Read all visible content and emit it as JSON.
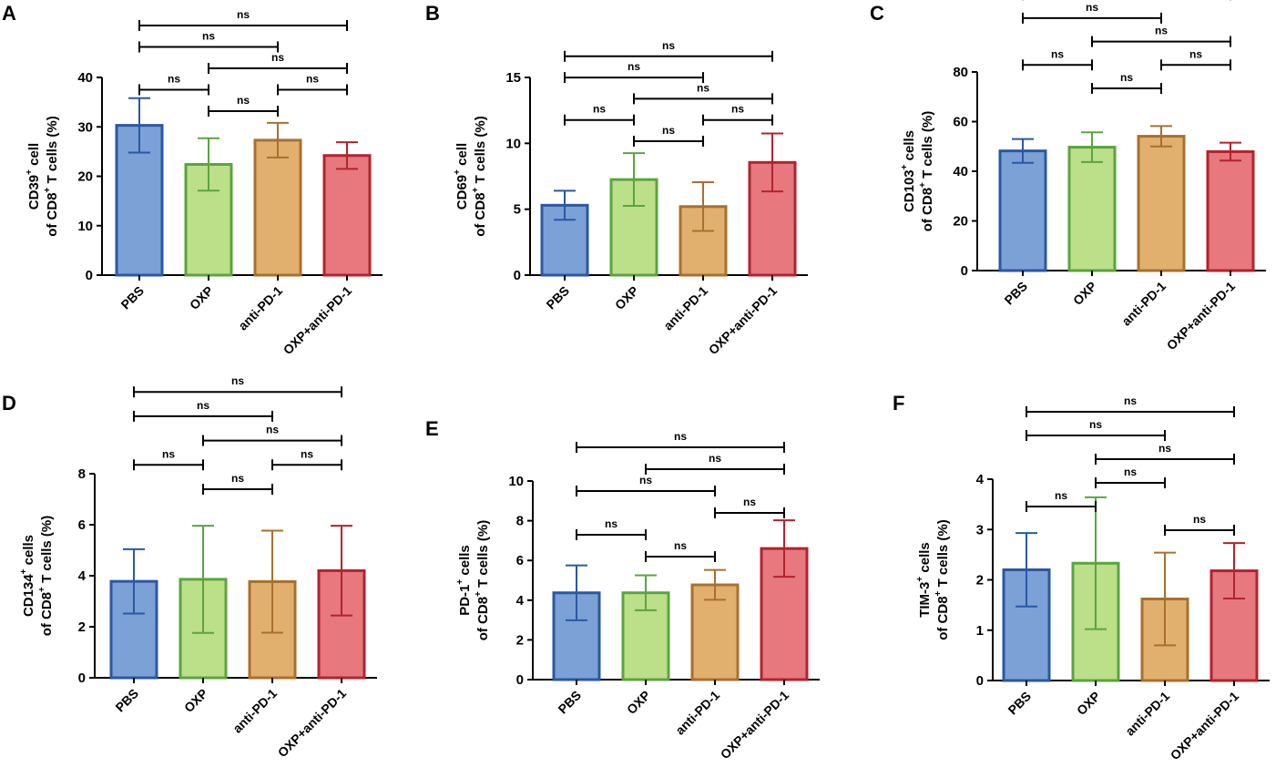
{
  "chart_data": [
    {
      "panel": "A",
      "type": "bar",
      "ylabel_line1": "CD39",
      "ylabel_sup1": "+",
      "ylabel_line1_rest": " cell",
      "ylabel_line2_pre": "of CD8",
      "ylabel_sup2": "+",
      "ylabel_line2_post": " T cells (%)",
      "categories": [
        "PBS",
        "OXP",
        "anti-PD-1",
        "OXP+anti-PD-1"
      ],
      "values": [
        30.3,
        22.4,
        27.3,
        24.2
      ],
      "errors": [
        5.5,
        5.3,
        3.5,
        2.7
      ],
      "ylim": [
        0,
        40
      ],
      "yticks": [
        0,
        10,
        20,
        30,
        40
      ],
      "brackets": [
        {
          "from": 0,
          "to": 1,
          "level": 1,
          "label": "ns"
        },
        {
          "from": 1,
          "to": 2,
          "level": 0,
          "label": "ns"
        },
        {
          "from": 2,
          "to": 3,
          "level": 1,
          "label": "ns"
        },
        {
          "from": 1,
          "to": 3,
          "level": 2,
          "label": "ns"
        },
        {
          "from": 0,
          "to": 2,
          "level": 3,
          "label": "ns"
        },
        {
          "from": 0,
          "to": 3,
          "level": 4,
          "label": "ns"
        }
      ]
    },
    {
      "panel": "B",
      "type": "bar",
      "ylabel_line1": "CD69",
      "ylabel_sup1": "+",
      "ylabel_line1_rest": " cell",
      "ylabel_line2_pre": "of CD8",
      "ylabel_sup2": "+",
      "ylabel_line2_post": " T cells (%)",
      "categories": [
        "PBS",
        "OXP",
        "anti-PD-1",
        "OXP+anti-PD-1"
      ],
      "values": [
        5.3,
        7.25,
        5.2,
        8.55
      ],
      "errors": [
        1.1,
        2.0,
        1.85,
        2.2
      ],
      "ylim": [
        0,
        15
      ],
      "yticks": [
        0,
        5,
        10,
        15
      ],
      "brackets": [
        {
          "from": 0,
          "to": 1,
          "level": 1,
          "label": "ns"
        },
        {
          "from": 1,
          "to": 2,
          "level": 0,
          "label": "ns"
        },
        {
          "from": 2,
          "to": 3,
          "level": 1,
          "label": "ns"
        },
        {
          "from": 1,
          "to": 3,
          "level": 2,
          "label": "ns"
        },
        {
          "from": 0,
          "to": 2,
          "level": 3,
          "label": "ns"
        },
        {
          "from": 0,
          "to": 3,
          "level": 4,
          "label": "ns"
        }
      ]
    },
    {
      "panel": "C",
      "type": "bar",
      "ylabel_line1": "CD103",
      "ylabel_sup1": "+",
      "ylabel_line1_rest": " cells",
      "ylabel_line2_pre": "of CD8",
      "ylabel_sup2": "+",
      "ylabel_line2_post": " T cells (%)",
      "categories": [
        "PBS",
        "OXP",
        "anti-PD-1",
        "OXP+anti-PD-1"
      ],
      "values": [
        48.2,
        49.7,
        54.1,
        47.9
      ],
      "errors": [
        4.8,
        6.0,
        4.1,
        3.6
      ],
      "ylim": [
        0,
        80
      ],
      "yticks": [
        0,
        20,
        40,
        60,
        80
      ],
      "brackets": [
        {
          "from": 0,
          "to": 1,
          "level": 1,
          "label": "ns"
        },
        {
          "from": 1,
          "to": 2,
          "level": 0,
          "label": "ns"
        },
        {
          "from": 2,
          "to": 3,
          "level": 1,
          "label": "ns"
        },
        {
          "from": 1,
          "to": 3,
          "level": 2,
          "label": "ns"
        },
        {
          "from": 0,
          "to": 2,
          "level": 3,
          "label": "ns"
        },
        {
          "from": 0,
          "to": 3,
          "level": 4,
          "label": "ns"
        }
      ]
    },
    {
      "panel": "D",
      "type": "bar",
      "ylabel_line1": "CD134",
      "ylabel_sup1": "+",
      "ylabel_line1_rest": " cells",
      "ylabel_line2_pre": "of CD8",
      "ylabel_sup2": "+",
      "ylabel_line2_post": " T cells (%)",
      "categories": [
        "PBS",
        "OXP",
        "anti-PD-1",
        "OXP+anti-PD-1"
      ],
      "values": [
        3.78,
        3.86,
        3.77,
        4.2
      ],
      "errors": [
        1.26,
        2.1,
        2.0,
        1.76
      ],
      "ylim": [
        0,
        8
      ],
      "yticks": [
        0,
        2,
        4,
        6,
        8
      ],
      "brackets": [
        {
          "from": 0,
          "to": 1,
          "level": 1,
          "label": "ns"
        },
        {
          "from": 1,
          "to": 2,
          "level": 0,
          "label": "ns"
        },
        {
          "from": 2,
          "to": 3,
          "level": 1,
          "label": "ns"
        },
        {
          "from": 1,
          "to": 3,
          "level": 2,
          "label": "ns"
        },
        {
          "from": 0,
          "to": 2,
          "level": 3,
          "label": "ns"
        },
        {
          "from": 0,
          "to": 3,
          "level": 4,
          "label": "ns"
        }
      ]
    },
    {
      "panel": "E",
      "type": "bar",
      "ylabel_line1": "PD-1",
      "ylabel_sup1": "+",
      "ylabel_line1_rest": " cells",
      "ylabel_line2_pre": "of CD8",
      "ylabel_sup2": "+",
      "ylabel_line2_post": " T cells (%)",
      "categories": [
        "PBS",
        "OXP",
        "anti-PD-1",
        "OXP+anti-PD-1"
      ],
      "values": [
        4.37,
        4.37,
        4.77,
        6.6
      ],
      "errors": [
        1.38,
        0.88,
        0.75,
        1.42
      ],
      "ylim": [
        0,
        10
      ],
      "yticks": [
        0,
        2,
        4,
        6,
        8,
        10
      ],
      "brackets": [
        {
          "from": 0,
          "to": 1,
          "level": 1,
          "label": "ns"
        },
        {
          "from": 1,
          "to": 2,
          "level": 0,
          "label": "ns"
        },
        {
          "from": 2,
          "to": 3,
          "level": 2,
          "label": "ns"
        },
        {
          "from": 0,
          "to": 2,
          "level": 3,
          "label": "ns"
        },
        {
          "from": 1,
          "to": 3,
          "level": 4,
          "label": "ns"
        },
        {
          "from": 0,
          "to": 3,
          "level": 5,
          "label": "ns"
        }
      ]
    },
    {
      "panel": "F",
      "type": "bar",
      "ylabel_line1": "TIM-3",
      "ylabel_sup1": "+",
      "ylabel_line1_rest": " cells",
      "ylabel_line2_pre": "of CD8",
      "ylabel_sup2": "+",
      "ylabel_line2_post": " T cells (%)",
      "categories": [
        "PBS",
        "OXP",
        "anti-PD-1",
        "OXP+anti-PD-1"
      ],
      "values": [
        2.2,
        2.33,
        1.62,
        2.18
      ],
      "errors": [
        0.73,
        1.31,
        0.92,
        0.55
      ],
      "ylim": [
        0,
        4
      ],
      "yticks": [
        0,
        1,
        2,
        3,
        4
      ],
      "brackets": [
        {
          "from": 2,
          "to": 3,
          "level": 0,
          "label": "ns"
        },
        {
          "from": 0,
          "to": 1,
          "level": 1,
          "label": "ns"
        },
        {
          "from": 1,
          "to": 2,
          "level": 2,
          "label": "ns"
        },
        {
          "from": 1,
          "to": 3,
          "level": 3,
          "label": "ns"
        },
        {
          "from": 0,
          "to": 2,
          "level": 4,
          "label": "ns"
        },
        {
          "from": 0,
          "to": 3,
          "level": 5,
          "label": "ns"
        }
      ]
    }
  ],
  "colors": {
    "fills": [
      "#7ba1d6",
      "#bcdf8a",
      "#e2b06e",
      "#e6787e"
    ],
    "strokes": [
      "#2a58a3",
      "#5aa53d",
      "#a8702c",
      "#b3232d"
    ]
  }
}
